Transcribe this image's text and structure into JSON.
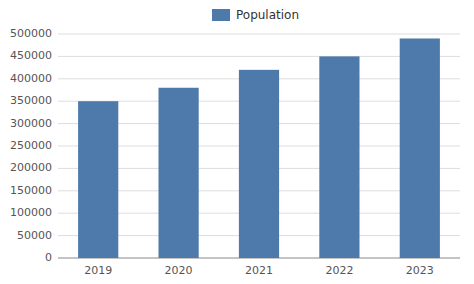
{
  "chart_data": {
    "type": "bar",
    "categories": [
      "2019",
      "2020",
      "2021",
      "2022",
      "2023"
    ],
    "series": [
      {
        "name": "Population",
        "color": "#4d7aab",
        "values": [
          350000,
          380000,
          420000,
          450000,
          490000
        ]
      }
    ],
    "ylim": [
      0,
      500000
    ],
    "yticks": [
      0,
      50000,
      100000,
      150000,
      200000,
      250000,
      300000,
      350000,
      400000,
      450000,
      500000
    ],
    "grid": true,
    "legend": "top"
  }
}
